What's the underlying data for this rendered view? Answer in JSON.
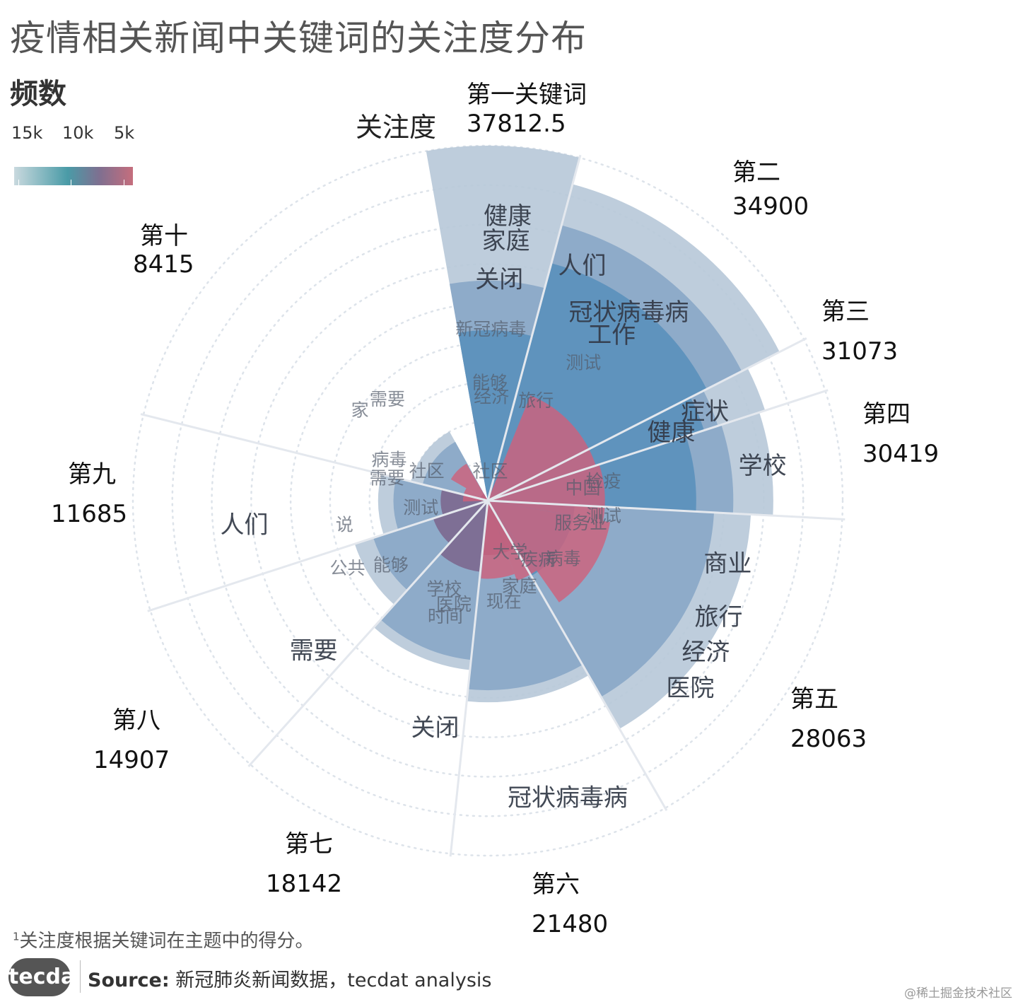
{
  "title": "疫情相关新闻中关键词的关注度分布",
  "legend": {
    "title": "频数",
    "ticks": [
      "15k",
      "10k",
      "5k"
    ],
    "colors": [
      "#c9d9de",
      "#4a9ba7",
      "#7f6f90",
      "#c56e7d"
    ]
  },
  "footnote": {
    "mark": "1",
    "text": "关注度根据关键词在主题中的得分。"
  },
  "source": {
    "logo": "tecdat",
    "label": "Source:",
    "text": "新冠肺炎新闻数据，tecdat analysis"
  },
  "watermark": "@稀土掘金技术社区",
  "chart_data": {
    "type": "radial-bar",
    "title": "疫情相关新闻中关键词的关注度分布",
    "axis_label": "关注度",
    "max_value": 37812.5,
    "colors": {
      "outer": "#b7c8d8",
      "middle": "#8eabc9",
      "inner": "#5b90bc",
      "red": "#d0607a",
      "purple": "#7d6990"
    },
    "categories": [
      {
        "label": "第一关键词",
        "value": 37812.5,
        "value_text": "37812.5",
        "mid": 0.62,
        "inner": 0.48,
        "words": [
          "健康",
          "家庭",
          "关闭",
          "新冠病毒",
          "能够",
          "经济",
          "社区"
        ]
      },
      {
        "label": "第二",
        "value": 34900,
        "value_text": "34900",
        "mid": 0.87,
        "inner": 0.75,
        "words": [
          "人们",
          "冠状病毒病",
          "工作",
          "测试",
          "旅行"
        ]
      },
      {
        "label": "第三",
        "value": 31073,
        "value_text": "31073",
        "mid": 0.83,
        "inner": 0.78,
        "words": [
          "症状",
          "健康"
        ]
      },
      {
        "label": "第四",
        "value": 30419,
        "value_text": "30419",
        "mid": 0.86,
        "inner": 0.73,
        "words": [
          "学校",
          "中国",
          "检疫"
        ]
      },
      {
        "label": "第五",
        "value": 28063,
        "value_text": "28063",
        "mid": 0.86,
        "inner": 0.33,
        "words": [
          "商业",
          "旅行",
          "经济",
          "医院",
          "服务业",
          "测试",
          "病毒",
          "疾病"
        ]
      },
      {
        "label": "第六",
        "value": 21480,
        "value_text": "21480",
        "mid": 0.94,
        "inner": 0.27,
        "words": [
          "冠状病毒病",
          "现在",
          "大学",
          "家庭"
        ]
      },
      {
        "label": "第七",
        "value": 18142,
        "value_text": "18142",
        "mid": 0.94,
        "inner": 0.42,
        "words": [
          "关闭",
          "时间",
          "学校",
          "医院"
        ]
      },
      {
        "label": "第八",
        "value": 14907,
        "value_text": "14907",
        "mid": 0.86,
        "inner": 0.41,
        "words": [
          "需要",
          "能够",
          "公共"
        ]
      },
      {
        "label": "第九",
        "value": 11685,
        "value_text": "11685",
        "mid": 0.86,
        "inner": 0.43,
        "words": [
          "人们",
          "说",
          "测试",
          "需要"
        ]
      },
      {
        "label": "第十",
        "value": 8415,
        "value_text": "8415",
        "mid": 0.85,
        "inner": 0.1,
        "words": [
          "家",
          "需要",
          "病毒",
          "社区"
        ]
      }
    ]
  }
}
